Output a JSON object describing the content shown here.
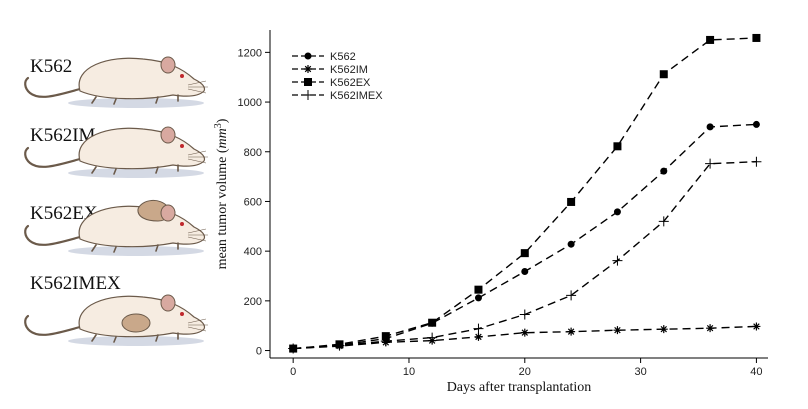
{
  "mice": [
    {
      "label": "K562",
      "variant": "plain"
    },
    {
      "label": "K562IM",
      "variant": "plain"
    },
    {
      "label": "K562EX",
      "variant": "tumor-back"
    },
    {
      "label": "K562IMEX",
      "variant": "tumor-side"
    }
  ],
  "colors": {
    "mouse_body": "#f6ece1",
    "mouse_outline": "#6b5a4a",
    "mouse_ear": "#d8a9a0",
    "mouse_tumor": "#c9a88a",
    "mouse_shadow": "#c9cfdd",
    "mouse_eye": "#c0282d",
    "line": "#000000"
  },
  "chart_data": {
    "type": "line",
    "title": "",
    "xlabel": "Days after transplantation",
    "ylabel_prefix": "mean tumor volume (",
    "ylabel_unit": "mm",
    "ylabel_exp": "3",
    "ylabel_suffix": ")",
    "xlim": [
      -2,
      41
    ],
    "ylim": [
      -30,
      1290
    ],
    "xticks": [
      0,
      10,
      20,
      30,
      40
    ],
    "yticks": [
      0,
      200,
      400,
      600,
      800,
      1000,
      1200
    ],
    "legend_position": "top-left",
    "series": [
      {
        "name": "K562",
        "marker": "circle",
        "x": [
          0,
          4,
          8,
          12,
          16,
          20,
          24,
          28,
          32,
          36,
          40
        ],
        "y": [
          8,
          22,
          48,
          110,
          212,
          318,
          428,
          558,
          722,
          900,
          910
        ]
      },
      {
        "name": "K562IM",
        "marker": "star",
        "x": [
          0,
          4,
          8,
          12,
          16,
          20,
          24,
          28,
          32,
          36,
          40
        ],
        "y": [
          8,
          18,
          33,
          40,
          55,
          72,
          76,
          82,
          86,
          90,
          97
        ]
      },
      {
        "name": "K562EX",
        "marker": "square",
        "x": [
          0,
          4,
          8,
          12,
          16,
          20,
          24,
          28,
          32,
          36,
          40
        ],
        "y": [
          8,
          25,
          58,
          112,
          245,
          392,
          598,
          822,
          1112,
          1250,
          1258
        ]
      },
      {
        "name": "K562IMEX",
        "marker": "plus",
        "x": [
          0,
          4,
          8,
          12,
          16,
          20,
          24,
          28,
          32,
          36,
          40
        ],
        "y": [
          8,
          20,
          38,
          52,
          88,
          145,
          222,
          362,
          520,
          752,
          760
        ]
      }
    ]
  }
}
